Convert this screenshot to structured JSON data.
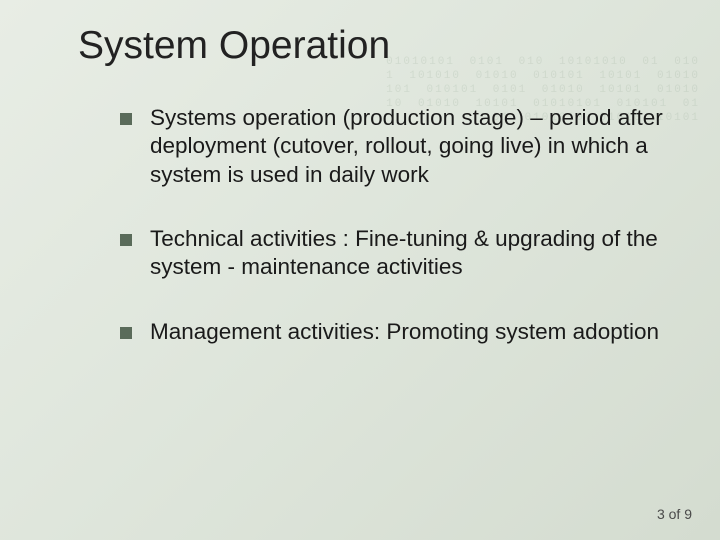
{
  "slide": {
    "title": "System Operation",
    "bullets": [
      "Systems operation (production stage) – period after deployment (cutover, rollout, going live) in which a system is used in daily work",
      "Technical activities : Fine-tuning & upgrading of the system - maintenance activities",
      "Management activities: Promoting system adoption"
    ],
    "page": {
      "current": 3,
      "separator": "of",
      "total": 9
    }
  },
  "style": {
    "background_gradient_start": "#e8ede5",
    "background_gradient_mid": "#dfe6dc",
    "background_gradient_end": "#d4dcd0",
    "title_fontsize": 39,
    "title_color": "#222222",
    "body_fontsize": 22.5,
    "body_color": "#1a1a1a",
    "bullet_marker_color": "#5a6b5a",
    "bullet_marker_size": 12,
    "font_family": "Verdana",
    "binary_pattern_color": "rgba(140,160,140,0.18)"
  }
}
